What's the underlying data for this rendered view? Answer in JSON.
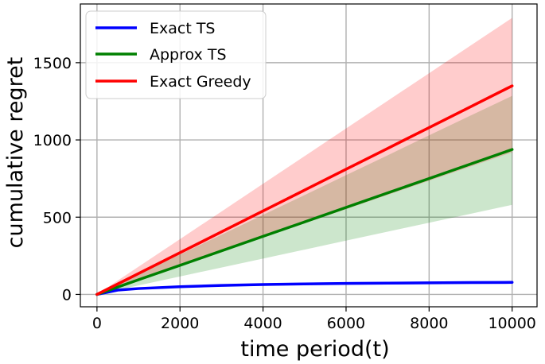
{
  "chart_data": {
    "type": "line",
    "title": "",
    "xlabel": "time period(t)",
    "ylabel": "cumulative regret",
    "xlim": [
      -400,
      10600
    ],
    "ylim": [
      -80,
      1880
    ],
    "xticks": [
      0,
      2000,
      4000,
      6000,
      8000,
      10000
    ],
    "yticks": [
      0,
      500,
      1000,
      1500
    ],
    "xtick_labels": [
      "0",
      "2000",
      "4000",
      "6000",
      "8000",
      "10000"
    ],
    "ytick_labels": [
      "0",
      "500",
      "1000",
      "1500"
    ],
    "grid": true,
    "legend_position": "upper-left",
    "series": [
      {
        "name": "Exact TS",
        "color": "#0000ff",
        "x": [
          0,
          500,
          1000,
          2000,
          3000,
          4000,
          5000,
          6000,
          7000,
          8000,
          9000,
          10000
        ],
        "y": [
          0,
          28,
          38,
          50,
          58,
          64,
          68,
          71,
          73,
          75,
          77,
          78
        ],
        "lower": [
          0,
          24,
          33,
          44,
          51,
          56,
          60,
          62,
          64,
          66,
          67,
          68
        ],
        "upper": [
          0,
          32,
          43,
          56,
          65,
          72,
          76,
          80,
          82,
          84,
          86,
          88
        ]
      },
      {
        "name": "Approx TS",
        "color": "#008000",
        "x": [
          0,
          1000,
          2000,
          3000,
          4000,
          5000,
          6000,
          7000,
          8000,
          9000,
          10000
        ],
        "y": [
          0,
          95,
          188,
          282,
          376,
          469,
          563,
          657,
          750,
          844,
          938
        ],
        "lower": [
          0,
          58,
          116,
          174,
          232,
          290,
          348,
          406,
          464,
          522,
          580
        ],
        "upper": [
          0,
          130,
          258,
          386,
          515,
          643,
          772,
          900,
          1030,
          1158,
          1285
        ]
      },
      {
        "name": "Exact Greedy",
        "color": "#ff0000",
        "x": [
          0,
          1000,
          2000,
          3000,
          4000,
          5000,
          6000,
          7000,
          8000,
          9000,
          10000
        ],
        "y": [
          0,
          135,
          270,
          405,
          540,
          675,
          810,
          945,
          1080,
          1215,
          1350
        ],
        "lower": [
          0,
          92,
          184,
          276,
          368,
          460,
          552,
          644,
          736,
          828,
          920
        ],
        "upper": [
          0,
          179,
          358,
          537,
          716,
          895,
          1074,
          1253,
          1432,
          1611,
          1790
        ]
      }
    ]
  }
}
